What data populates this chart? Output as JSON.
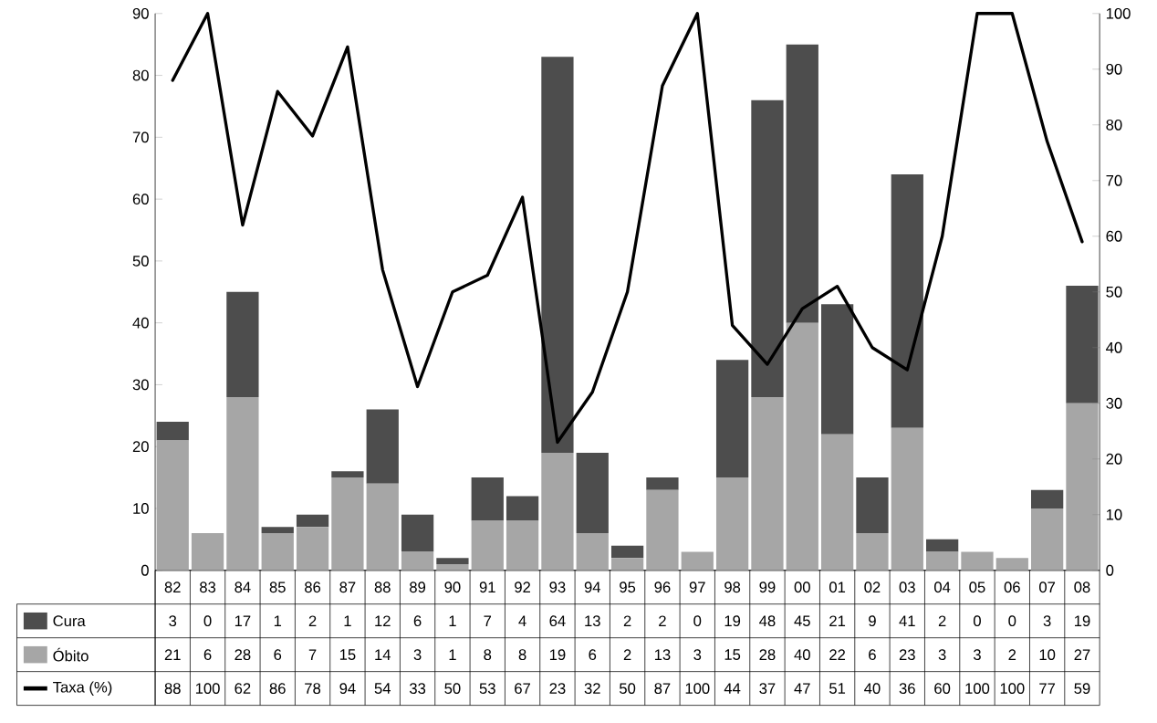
{
  "chart_data": {
    "type": "bar",
    "stacked": true,
    "categories": [
      "82",
      "83",
      "84",
      "85",
      "86",
      "87",
      "88",
      "89",
      "90",
      "91",
      "92",
      "93",
      "94",
      "95",
      "96",
      "97",
      "98",
      "99",
      "00",
      "01",
      "02",
      "03",
      "04",
      "05",
      "06",
      "07",
      "08"
    ],
    "series": [
      {
        "name": "Óbito",
        "color": "#a6a6a6",
        "values": [
          21,
          6,
          28,
          6,
          7,
          15,
          14,
          3,
          1,
          8,
          8,
          19,
          6,
          2,
          13,
          3,
          15,
          28,
          40,
          22,
          6,
          23,
          3,
          3,
          2,
          10,
          27
        ]
      },
      {
        "name": "Cura",
        "color": "#4d4d4d",
        "values": [
          3,
          0,
          17,
          1,
          2,
          1,
          12,
          6,
          1,
          7,
          4,
          64,
          13,
          2,
          2,
          0,
          19,
          48,
          45,
          21,
          9,
          41,
          2,
          0,
          0,
          3,
          19
        ]
      },
      {
        "name": "Taxa (%)",
        "type": "line",
        "axis": "y2",
        "color": "#000000",
        "values": [
          88,
          100,
          62,
          86,
          78,
          94,
          54,
          33,
          50,
          53,
          67,
          23,
          32,
          50,
          87,
          100,
          44,
          37,
          47,
          51,
          40,
          36,
          60,
          100,
          100,
          77,
          59
        ],
        "value_labels": [
          "88",
          "100",
          "62",
          "86",
          "78",
          "94",
          "54",
          "33",
          "50",
          "53",
          "67",
          "23",
          "32",
          "50",
          "87",
          "100",
          "44",
          "37",
          "47",
          "51",
          "40",
          "36",
          "60",
          "100",
          "100",
          "77",
          "59"
        ]
      }
    ],
    "ylim": [
      0,
      90
    ],
    "yticks": [
      0,
      10,
      20,
      30,
      40,
      50,
      60,
      70,
      80,
      90
    ],
    "y2lim": [
      0,
      100
    ],
    "y2ticks": [
      0,
      10,
      20,
      30,
      40,
      50,
      60,
      70,
      80,
      90,
      100
    ],
    "data_labels": true,
    "legend": "bottom",
    "marker": "none",
    "line_style": "solid",
    "grid": false
  }
}
